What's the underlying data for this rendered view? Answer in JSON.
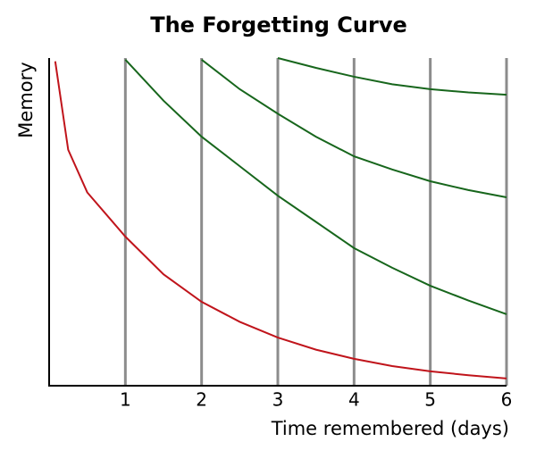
{
  "chart_data": {
    "type": "line",
    "title": "The Forgetting Curve",
    "x_label": "Time remembered (days)",
    "y_label": "Memory",
    "x": [
      0.08,
      0.25,
      0.5,
      1,
      1.5,
      2,
      2.5,
      3,
      3.5,
      4,
      4.5,
      5,
      5.5,
      6
    ],
    "series": [
      {
        "color": "#c0141b",
        "values": [
          99,
          72,
          59,
          45.5,
          34,
          25.6,
          19.5,
          14.7,
          11,
          8.2,
          6,
          4.4,
          3.2,
          2.2
        ]
      },
      {
        "color": "#17661c",
        "values": [
          null,
          null,
          null,
          99.5,
          87,
          76,
          67,
          58,
          50,
          42,
          36,
          30.5,
          26,
          21.8
        ]
      },
      {
        "color": "#17661c",
        "values": [
          null,
          null,
          null,
          null,
          null,
          99.5,
          90.5,
          83,
          76,
          70,
          66,
          62.4,
          59.7,
          57.5
        ]
      },
      {
        "color": "#17661c",
        "values": [
          null,
          null,
          null,
          null,
          null,
          null,
          null,
          100,
          97,
          94.3,
          92,
          90.5,
          89.5,
          88.8
        ]
      }
    ],
    "xlim": [
      0,
      6
    ],
    "xticks": [
      1,
      2,
      3,
      4,
      5,
      6
    ],
    "ylim": [
      0,
      100
    ],
    "grid": true,
    "grid_color": "#8c8c8c"
  }
}
